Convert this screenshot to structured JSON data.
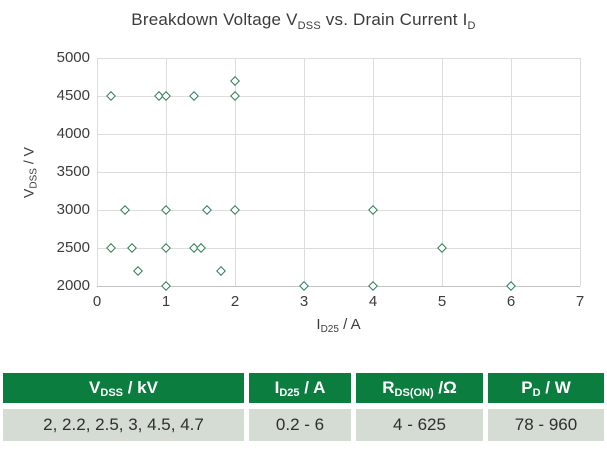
{
  "title": {
    "pre": "Breakdown Voltage V",
    "sub1": "DSS",
    "mid": " vs. Drain Current I",
    "sub2": "D"
  },
  "chart_data": {
    "type": "scatter",
    "title": "Breakdown Voltage V_DSS vs. Drain Current I_D",
    "xlabel": {
      "main": "I",
      "sub": "D25",
      "rest": " / A"
    },
    "ylabel": {
      "main": "V",
      "sub": "DSS",
      "rest": " / V"
    },
    "xlim": [
      0,
      7
    ],
    "ylim": [
      2000,
      5000
    ],
    "xticks": [
      0,
      1,
      2,
      3,
      4,
      5,
      6,
      7
    ],
    "yticks": [
      2000,
      2500,
      3000,
      3500,
      4000,
      4500,
      5000
    ],
    "grid": true,
    "legend": "none",
    "marker_style": "open-diamond",
    "points": [
      {
        "x": 1.0,
        "y": 2000
      },
      {
        "x": 3.0,
        "y": 2000
      },
      {
        "x": 4.0,
        "y": 2000
      },
      {
        "x": 6.0,
        "y": 2000
      },
      {
        "x": 0.6,
        "y": 2200
      },
      {
        "x": 1.8,
        "y": 2200
      },
      {
        "x": 0.2,
        "y": 2500
      },
      {
        "x": 0.5,
        "y": 2500
      },
      {
        "x": 1.0,
        "y": 2500
      },
      {
        "x": 1.4,
        "y": 2500
      },
      {
        "x": 1.5,
        "y": 2500
      },
      {
        "x": 5.0,
        "y": 2500
      },
      {
        "x": 0.4,
        "y": 3000
      },
      {
        "x": 1.0,
        "y": 3000
      },
      {
        "x": 1.6,
        "y": 3000
      },
      {
        "x": 2.0,
        "y": 3000
      },
      {
        "x": 4.0,
        "y": 3000
      },
      {
        "x": 0.2,
        "y": 4500
      },
      {
        "x": 0.9,
        "y": 4500
      },
      {
        "x": 1.0,
        "y": 4500
      },
      {
        "x": 1.4,
        "y": 4500
      },
      {
        "x": 2.0,
        "y": 4500
      },
      {
        "x": 2.0,
        "y": 4700
      }
    ]
  },
  "table": {
    "headers": [
      {
        "main": "V",
        "sub": "DSS",
        "rest": " / kV"
      },
      {
        "main": "I",
        "sub": "D25",
        "rest": " / A"
      },
      {
        "main": "R",
        "sub": "DS(ON)",
        "rest": " /Ω"
      },
      {
        "main": "P",
        "sub": "D",
        "rest": " / W"
      }
    ],
    "values": [
      "2, 2.2, 2.5, 3, 4.5, 4.7",
      "0.2 - 6",
      "4 - 625",
      "78 - 960"
    ]
  },
  "colors": {
    "marker": "#2e7d52",
    "header_bg": "#0a7d3f",
    "header_text": "#ffffff",
    "row_bg": "#d5dcd3",
    "grid": "#dcdcdc",
    "text": "#3b3b3b"
  }
}
